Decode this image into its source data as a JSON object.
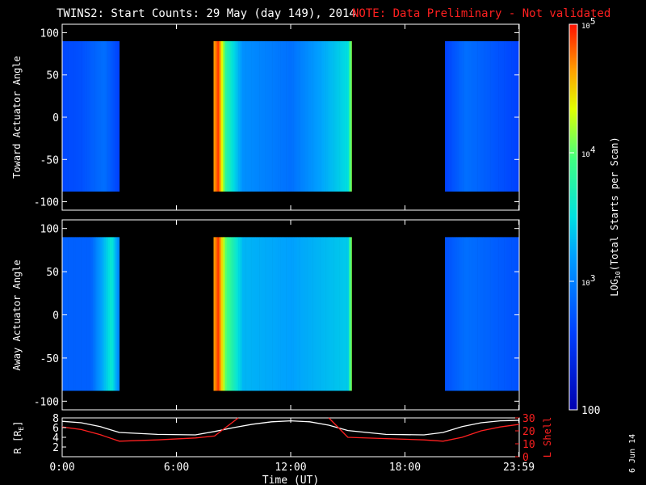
{
  "title": "TWINS2: Start Counts: 29 May (day 149), 2014",
  "note": "NOTE: Data Preliminary - Not validated",
  "date_stamp": "6 Jun 14",
  "colors": {
    "background": "#000000",
    "note": "#ff2020",
    "r_line": "#ffffff",
    "l_line": "#ff2020"
  },
  "colorbar": {
    "label_main": "LOG",
    "label_sub": "10",
    "label_rest": "(Total Starts per Scan)",
    "ticks": [
      {
        "base": "10",
        "exp": "5",
        "value": 100000
      },
      {
        "base": "10",
        "exp": "4",
        "value": 10000
      },
      {
        "base": "10",
        "exp": "3",
        "value": 1000
      },
      {
        "base": "100",
        "exp": "",
        "value": 100
      }
    ],
    "log_range": [
      2,
      5
    ]
  },
  "chart_data": [
    {
      "type": "heatmap",
      "ylabel": "Toward Actuator Angle",
      "xlim": [
        0,
        24
      ],
      "ylim": [
        -110,
        110
      ],
      "yticks": [
        "100",
        "50",
        "0",
        "-50",
        "-100"
      ],
      "ytick_values": [
        100,
        50,
        0,
        -50,
        -100
      ],
      "data_blocks": [
        {
          "t_start": 0.0,
          "t_end": 3.0,
          "angle_min": -88,
          "angle_max": 90
        },
        {
          "t_start": 7.95,
          "t_end": 15.2,
          "angle_min": -88,
          "angle_max": 90
        },
        {
          "t_start": 20.1,
          "t_end": 23.98,
          "angle_min": -88,
          "angle_max": 90
        }
      ],
      "log_counts_by_time": [
        {
          "t": 0.0,
          "log": 2.65
        },
        {
          "t": 1.0,
          "log": 2.7
        },
        {
          "t": 2.2,
          "log": 2.9
        },
        {
          "t": 3.0,
          "log": 2.6
        },
        {
          "t": 7.95,
          "log": 4.6
        },
        {
          "t": 8.2,
          "log": 4.9
        },
        {
          "t": 8.6,
          "log": 3.8
        },
        {
          "t": 9.5,
          "log": 3.1
        },
        {
          "t": 12.0,
          "log": 2.9
        },
        {
          "t": 15.0,
          "log": 3.5
        },
        {
          "t": 15.2,
          "log": 4.2
        },
        {
          "t": 20.1,
          "log": 2.6
        },
        {
          "t": 21.2,
          "log": 2.9
        },
        {
          "t": 24.0,
          "log": 2.6
        }
      ]
    },
    {
      "type": "heatmap",
      "ylabel": "Away Actuator Angle",
      "xlim": [
        0,
        24
      ],
      "ylim": [
        -110,
        110
      ],
      "yticks": [
        "100",
        "50",
        "0",
        "-50",
        "-100"
      ],
      "ytick_values": [
        100,
        50,
        0,
        -50,
        -100
      ],
      "data_blocks": [
        {
          "t_start": 0.0,
          "t_end": 3.0,
          "angle_min": -88,
          "angle_max": 90
        },
        {
          "t_start": 7.95,
          "t_end": 15.2,
          "angle_min": -88,
          "angle_max": 90
        },
        {
          "t_start": 20.1,
          "t_end": 23.98,
          "angle_min": -88,
          "angle_max": 90
        }
      ],
      "log_counts_by_time": [
        {
          "t": 0.0,
          "log": 2.8
        },
        {
          "t": 1.5,
          "log": 2.8
        },
        {
          "t": 2.6,
          "log": 3.6
        },
        {
          "t": 3.0,
          "log": 3.0
        },
        {
          "t": 7.95,
          "log": 4.6
        },
        {
          "t": 8.2,
          "log": 4.9
        },
        {
          "t": 8.6,
          "log": 4.0
        },
        {
          "t": 9.5,
          "log": 3.3
        },
        {
          "t": 12.0,
          "log": 3.2
        },
        {
          "t": 15.0,
          "log": 3.4
        },
        {
          "t": 15.2,
          "log": 4.2
        },
        {
          "t": 20.1,
          "log": 2.7
        },
        {
          "t": 21.2,
          "log": 2.9
        },
        {
          "t": 24.0,
          "log": 2.7
        }
      ]
    },
    {
      "type": "line",
      "ylabel_left": "R [R",
      "ylabel_left_sub": "E",
      "ylabel_left_end": "]",
      "ylabel_right": "L Shell",
      "xlabel": "Time (UT)",
      "xlim": [
        0,
        24
      ],
      "xticks": [
        "0:00",
        "6:00",
        "12:00",
        "18:00",
        "23:59"
      ],
      "xtick_values": [
        0,
        6,
        12,
        18,
        23.98
      ],
      "ylim_left": [
        0,
        8
      ],
      "yticks_left": [
        "8",
        "6",
        "4",
        "2"
      ],
      "ytick_left_values": [
        8,
        6,
        4,
        2
      ],
      "ylim_right": [
        0,
        30
      ],
      "yticks_right": [
        "30",
        "20",
        "10",
        "0"
      ],
      "ytick_right_values": [
        30,
        20,
        10,
        0
      ],
      "series": [
        {
          "axis": "left",
          "color": "#ffffff",
          "x": [
            0,
            1,
            2,
            3,
            5,
            7,
            8,
            9,
            10,
            11,
            12,
            13,
            14,
            15,
            17,
            19,
            20,
            21,
            22,
            23,
            24
          ],
          "y": [
            7.3,
            7.0,
            6.2,
            5.0,
            4.6,
            4.5,
            5.2,
            6.0,
            6.7,
            7.2,
            7.4,
            7.2,
            6.5,
            5.4,
            4.6,
            4.5,
            5.0,
            6.2,
            7.0,
            7.4,
            7.5
          ]
        },
        {
          "axis": "right",
          "color": "#ff2020",
          "x": [
            0,
            1,
            2,
            3,
            5,
            7,
            8,
            9.25,
            null,
            14.0,
            15.0,
            17,
            19,
            20,
            21,
            22,
            23,
            24
          ],
          "y": [
            23,
            21,
            17,
            12,
            13,
            14.5,
            16,
            30,
            null,
            30,
            15,
            14,
            13,
            12,
            15,
            20,
            23,
            25
          ]
        }
      ]
    }
  ]
}
